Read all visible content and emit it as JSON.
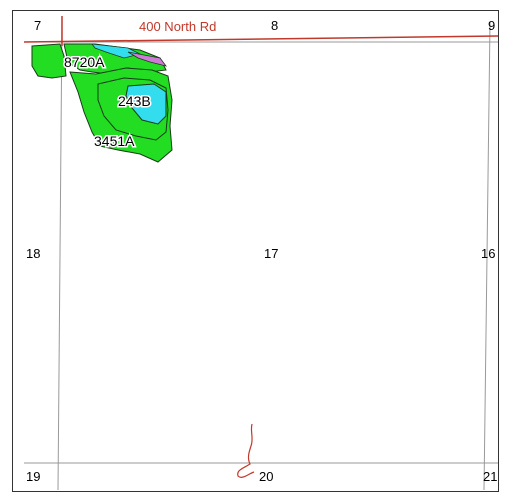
{
  "map": {
    "road_label": "400 North Rd",
    "sections": [
      "7",
      "8",
      "9",
      "18",
      "17",
      "16",
      "19",
      "20",
      "21"
    ],
    "soil_units": [
      "8720A",
      "243B",
      "3451A"
    ],
    "colors": {
      "road": "#c0392b",
      "section_line": "#999999",
      "soil_green": "#22dd22",
      "soil_cyan": "#33ddee",
      "soil_purple": "#d07ad8",
      "soil_outline": "#1b3a1b"
    }
  }
}
